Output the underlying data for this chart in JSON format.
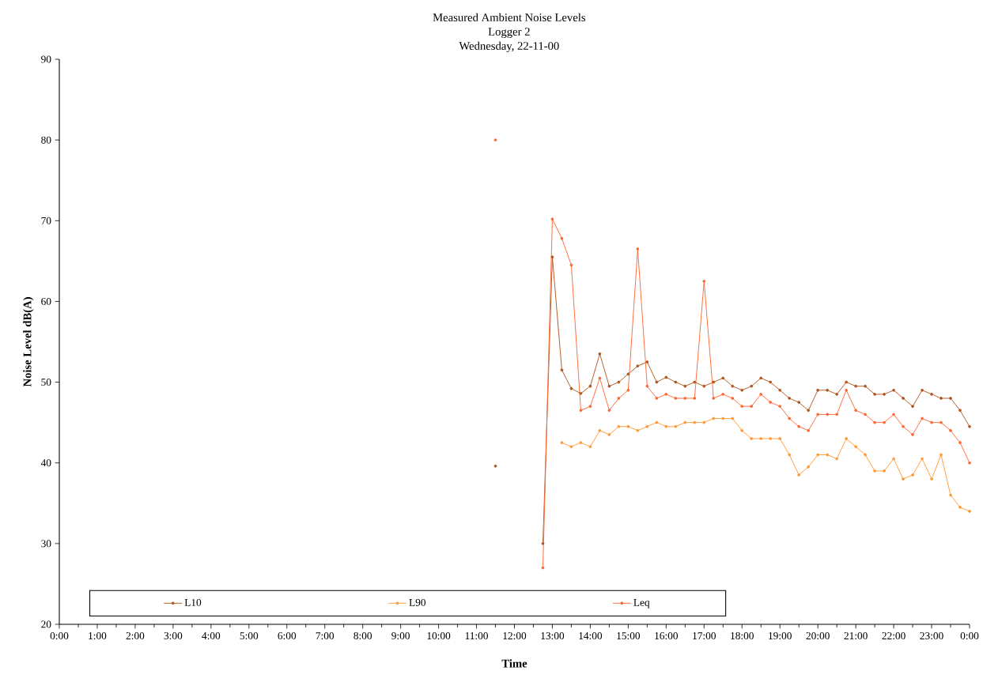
{
  "chart_data": {
    "type": "line",
    "title": "Measured Ambient Noise Levels",
    "subtitle": "Logger 2",
    "annotations": [
      "Wednesday, 22-11-00"
    ],
    "xlabel": "Time",
    "ylabel": "Noise Level dB(A)",
    "x": [
      11.5,
      11.75,
      12,
      12.25,
      12.5,
      12.75,
      13,
      13.25,
      13.5,
      13.75,
      14,
      14.25,
      14.5,
      14.75,
      15,
      15.25,
      15.5,
      15.75,
      16,
      16.25,
      16.5,
      16.75,
      17,
      17.25,
      17.5,
      17.75,
      18,
      18.25,
      18.5,
      18.75,
      19,
      19.25,
      19.5,
      19.75,
      20,
      20.25,
      20.5,
      20.75,
      21,
      21.25,
      21.5,
      21.75,
      22,
      22.25,
      22.5,
      22.75,
      23,
      23.25,
      23.5,
      23.75,
      24
    ],
    "series": [
      {
        "name": "L10",
        "color": "#b0561e",
        "values": [
          39.6,
          null,
          null,
          null,
          null,
          30,
          65.5,
          51.5,
          49.2,
          48.6,
          49.5,
          53.5,
          49.5,
          50,
          51,
          52,
          52.5,
          50,
          50.6,
          50,
          49.5,
          50,
          49.5,
          50,
          50.5,
          49.5,
          49,
          49.5,
          50.5,
          50,
          49,
          48,
          47.5,
          46.5,
          49,
          49,
          48.5,
          50,
          49.5,
          49.5,
          48.5,
          48.5,
          49,
          48,
          47,
          49,
          48.5,
          48,
          48,
          46.5,
          44.5
        ]
      },
      {
        "name": "L90",
        "color": "#ff9933",
        "values": [
          null,
          null,
          null,
          null,
          null,
          null,
          null,
          42.5,
          42,
          42.5,
          42,
          44,
          43.5,
          44.5,
          44.5,
          44,
          44.5,
          45,
          44.5,
          44.5,
          45,
          45,
          45,
          45.5,
          45.5,
          45.5,
          44,
          43,
          43,
          43,
          43,
          41,
          38.5,
          39.5,
          41,
          41,
          40.5,
          43,
          42,
          41,
          39,
          39,
          40.5,
          38,
          38.5,
          40.5,
          38,
          41,
          36,
          34.5,
          34
        ]
      },
      {
        "name": "Leq",
        "color": "#ff6633",
        "values": [
          80,
          null,
          null,
          null,
          null,
          27,
          70.2,
          67.8,
          64.5,
          46.5,
          47,
          50.5,
          46.5,
          48,
          49,
          66.5,
          49.5,
          48,
          48.5,
          48,
          48,
          48,
          62.5,
          48,
          48.5,
          48,
          47,
          47,
          48.5,
          47.5,
          47,
          45.5,
          44.5,
          44,
          46,
          46,
          46,
          49,
          46.5,
          46,
          45,
          45,
          46,
          44.5,
          43.5,
          45.5,
          45,
          45,
          44,
          42.5,
          40
        ]
      }
    ],
    "xlim": [
      0,
      24
    ],
    "xticks": [
      {
        "value": 0,
        "label": "0:00"
      },
      {
        "value": 1,
        "label": "1:00"
      },
      {
        "value": 2,
        "label": "2:00"
      },
      {
        "value": 3,
        "label": "3:00"
      },
      {
        "value": 4,
        "label": "4:00"
      },
      {
        "value": 5,
        "label": "5:00"
      },
      {
        "value": 6,
        "label": "6:00"
      },
      {
        "value": 7,
        "label": "7:00"
      },
      {
        "value": 8,
        "label": "8:00"
      },
      {
        "value": 9,
        "label": "9:00"
      },
      {
        "value": 10,
        "label": "10:00"
      },
      {
        "value": 11,
        "label": "11:00"
      },
      {
        "value": 12,
        "label": "12:00"
      },
      {
        "value": 13,
        "label": "13:00"
      },
      {
        "value": 14,
        "label": "14:00"
      },
      {
        "value": 15,
        "label": "15:00"
      },
      {
        "value": 16,
        "label": "16:00"
      },
      {
        "value": 17,
        "label": "17:00"
      },
      {
        "value": 18,
        "label": "18:00"
      },
      {
        "value": 19,
        "label": "19:00"
      },
      {
        "value": 20,
        "label": "20:00"
      },
      {
        "value": 21,
        "label": "21:00"
      },
      {
        "value": 22,
        "label": "22:00"
      },
      {
        "value": 23,
        "label": "23:00"
      },
      {
        "value": 24,
        "label": "0:00"
      }
    ],
    "ylim": [
      20,
      90
    ],
    "yticks": [
      20,
      30,
      40,
      50,
      60,
      70,
      80,
      90
    ],
    "grid": false,
    "legend": "bottom",
    "marker": "circle",
    "line_style": "solid"
  }
}
